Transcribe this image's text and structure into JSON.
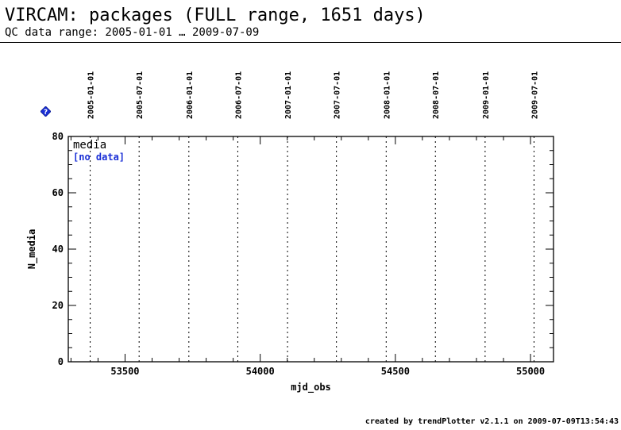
{
  "header": {
    "title": "VIRCAM: packages (FULL range, 1651 days)",
    "subtitle": "QC data range: 2005-01-01 … 2009-07-09"
  },
  "help_icon": {
    "icon": "help-icon",
    "glyph": "?",
    "color": "#1a2fd6"
  },
  "chart_data": {
    "type": "scatter",
    "xlabel": "mjd_obs",
    "ylabel": "N_media",
    "xlim": [
      53290,
      55085
    ],
    "ylim": [
      0,
      80
    ],
    "x_ticks": [
      53500,
      54000,
      54500,
      55000
    ],
    "y_ticks": [
      0,
      20,
      40,
      60,
      80
    ],
    "date_markers": [
      {
        "label": "2005-01-01",
        "mjd": 53371
      },
      {
        "label": "2005-07-01",
        "mjd": 53552
      },
      {
        "label": "2006-01-01",
        "mjd": 53736
      },
      {
        "label": "2006-07-01",
        "mjd": 53917
      },
      {
        "label": "2007-01-01",
        "mjd": 54101
      },
      {
        "label": "2007-07-01",
        "mjd": 54282
      },
      {
        "label": "2008-01-01",
        "mjd": 54466
      },
      {
        "label": "2008-07-01",
        "mjd": 54648
      },
      {
        "label": "2009-01-01",
        "mjd": 54832
      },
      {
        "label": "2009-07-01",
        "mjd": 55013
      }
    ],
    "series": [
      {
        "name": "media",
        "values": []
      }
    ],
    "no_data_label": "[no data]",
    "no_data_color": "#1a2fd6",
    "grid": false
  },
  "footer": {
    "text": "created by trendPlotter v2.1.1 on 2009-07-09T13:54:43"
  }
}
